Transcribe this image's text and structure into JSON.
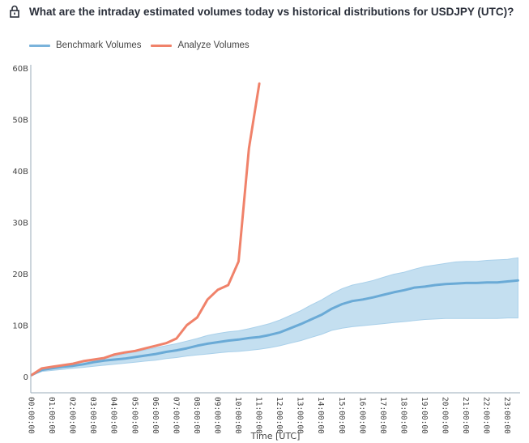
{
  "header": {
    "title": "What are the intraday estimated volumes today vs historical distributions for USDJPY (UTC)?",
    "icon": "lock-icon"
  },
  "legend": [
    {
      "label": "Benchmark Volumes",
      "color": "#7ab3db"
    },
    {
      "label": "Analyze Volumes",
      "color": "#f0826a"
    }
  ],
  "chart_data": {
    "type": "line",
    "title": "What are the intraday estimated volumes today vs historical distributions for USDJPY (UTC)?",
    "xlabel": "Time [UTC]",
    "ylabel": "",
    "ylim": [
      0,
      60
    ],
    "xlim": [
      0,
      24
    ],
    "y_ticks": [
      {
        "value": 0,
        "label": "0"
      },
      {
        "value": 10,
        "label": "10B"
      },
      {
        "value": 20,
        "label": "20B"
      },
      {
        "value": 30,
        "label": "30B"
      },
      {
        "value": 40,
        "label": "40B"
      },
      {
        "value": 50,
        "label": "50B"
      },
      {
        "value": 60,
        "label": "60B"
      }
    ],
    "x_ticks": [
      "00:00:00",
      "01:00:00",
      "02:00:00",
      "03:00:00",
      "04:00:00",
      "05:00:00",
      "06:00:00",
      "07:00:00",
      "08:00:00",
      "09:00:00",
      "10:00:00",
      "11:00:00",
      "12:00:00",
      "13:00:00",
      "14:00:00",
      "15:00:00",
      "16:00:00",
      "17:00:00",
      "18:00:00",
      "19:00:00",
      "20:00:00",
      "21:00:00",
      "22:00:00",
      "23:00:00"
    ],
    "grid": false,
    "legend_position": "top-left",
    "units": "billions",
    "series": [
      {
        "name": "Benchmark Volumes",
        "color": "#6aaad6",
        "x": [
          0,
          0.5,
          1,
          1.5,
          2,
          2.5,
          3,
          3.5,
          4,
          4.5,
          5,
          5.5,
          6,
          6.5,
          7,
          7.5,
          8,
          8.5,
          9,
          9.5,
          10,
          10.5,
          11,
          11.5,
          12,
          12.5,
          13,
          13.5,
          14,
          14.5,
          15,
          15.5,
          16,
          16.5,
          17,
          17.5,
          18,
          18.5,
          19,
          19.5,
          20,
          20.5,
          21,
          21.5,
          22,
          22.5,
          23,
          23.5
        ],
        "values": [
          0.3,
          1.3,
          1.6,
          1.9,
          2.1,
          2.4,
          2.8,
          3.1,
          3.3,
          3.5,
          3.8,
          4.1,
          4.4,
          4.8,
          5.1,
          5.5,
          6.0,
          6.4,
          6.7,
          7.0,
          7.2,
          7.5,
          7.7,
          8.1,
          8.6,
          9.4,
          10.2,
          11.1,
          12.0,
          13.2,
          14.1,
          14.7,
          15.0,
          15.4,
          15.9,
          16.4,
          16.8,
          17.3,
          17.5,
          17.8,
          18.0,
          18.1,
          18.2,
          18.2,
          18.3,
          18.3,
          18.5,
          18.7
        ],
        "band_upper": [
          0.3,
          1.5,
          1.9,
          2.2,
          2.5,
          2.9,
          3.3,
          3.7,
          4.0,
          4.4,
          4.8,
          5.2,
          5.6,
          6.0,
          6.4,
          6.9,
          7.4,
          8.0,
          8.4,
          8.7,
          8.9,
          9.3,
          9.8,
          10.3,
          11.0,
          11.9,
          12.8,
          13.9,
          14.9,
          16.1,
          17.1,
          17.8,
          18.2,
          18.7,
          19.3,
          19.9,
          20.3,
          20.9,
          21.4,
          21.7,
          22.0,
          22.3,
          22.4,
          22.4,
          22.6,
          22.7,
          22.8,
          23.1
        ],
        "band_lower": [
          0.3,
          1.0,
          1.2,
          1.4,
          1.6,
          1.8,
          2.0,
          2.2,
          2.4,
          2.6,
          2.8,
          3.0,
          3.2,
          3.5,
          3.7,
          4.0,
          4.2,
          4.4,
          4.6,
          4.8,
          4.9,
          5.1,
          5.3,
          5.6,
          6.0,
          6.5,
          7.0,
          7.6,
          8.2,
          9.0,
          9.4,
          9.7,
          9.9,
          10.1,
          10.3,
          10.5,
          10.7,
          10.9,
          11.1,
          11.2,
          11.3,
          11.3,
          11.3,
          11.3,
          11.3,
          11.3,
          11.4,
          11.4
        ]
      },
      {
        "name": "Analyze Volumes",
        "color": "#f0826a",
        "x": [
          0,
          0.5,
          1,
          1.5,
          2,
          2.5,
          3,
          3.5,
          4,
          4.5,
          5,
          5.5,
          6,
          6.5,
          7,
          7.5,
          8,
          8.5,
          9,
          9.5,
          10,
          10.5,
          11
        ],
        "values": [
          0.3,
          1.6,
          1.9,
          2.2,
          2.5,
          3.0,
          3.3,
          3.6,
          4.3,
          4.7,
          5.0,
          5.5,
          6.0,
          6.5,
          7.4,
          10.0,
          11.5,
          15.0,
          16.9,
          17.8,
          22.4,
          44.4,
          57.0
        ]
      }
    ]
  }
}
